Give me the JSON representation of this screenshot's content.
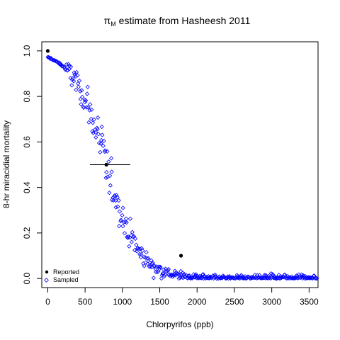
{
  "chart_data": {
    "type": "scatter",
    "title_main": "π",
    "title_sub": "M",
    "title_rest": " estimate from Hasheesh 2011",
    "xlabel": "Chlorpyrifos (ppb)",
    "ylabel": "8-hr miracidial mortality",
    "xlim": [
      -80,
      3620
    ],
    "ylim": [
      -0.04,
      1.04
    ],
    "xticks": [
      0,
      500,
      1000,
      1500,
      2000,
      2500,
      3000,
      3500
    ],
    "yticks": [
      0.0,
      0.2,
      0.4,
      0.6,
      0.8,
      1.0
    ],
    "xtick_labels": [
      "0",
      "500",
      "1000",
      "1500",
      "2000",
      "2500",
      "3000",
      "3500"
    ],
    "ytick_labels": [
      "0.0",
      "0.2",
      "0.4",
      "0.6",
      "0.8",
      "1.0"
    ],
    "grid": false,
    "legend_position": "bottom-left",
    "series": [
      {
        "name": "Reported",
        "marker": "filled-circle",
        "color": "#000000",
        "points": [
          {
            "x": 0,
            "y": 1.0,
            "xerr": [
              0,
              0
            ]
          },
          {
            "x": 785,
            "y": 0.5,
            "xerr": [
              565,
              1105
            ]
          },
          {
            "x": 1785,
            "y": 0.1,
            "xerr": [
              1785,
              1785
            ]
          }
        ]
      },
      {
        "name": "Sampled",
        "marker": "open-diamond",
        "color": "#0000ff",
        "generator": {
          "n": 420,
          "x_range": [
            0,
            3620
          ],
          "curve": "logistic",
          "curve_mid": 785,
          "curve_scale": 0.0045,
          "noise": 0.06
        }
      }
    ]
  }
}
